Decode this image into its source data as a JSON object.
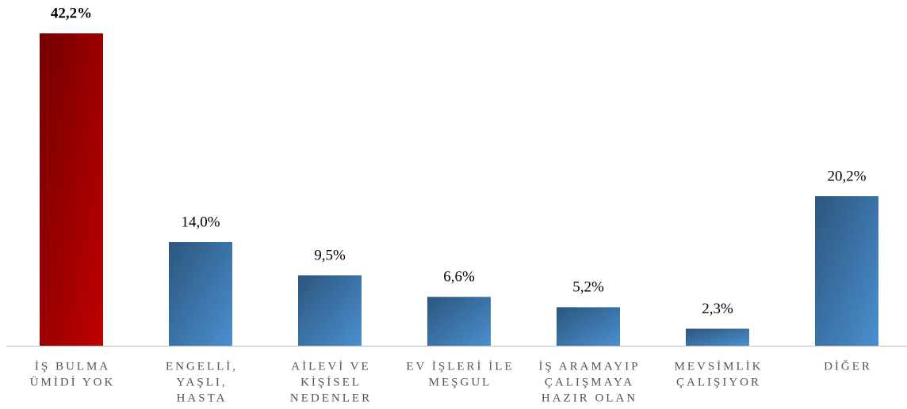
{
  "chart_data": {
    "type": "bar",
    "categories": [
      [
        "İŞ BULMA",
        "ÜMİDİ YOK"
      ],
      [
        "ENGELLİ,",
        "YAŞLI,",
        "HASTA"
      ],
      [
        "AİLEVİ VE",
        "KİŞİSEL",
        "NEDENLER"
      ],
      [
        "EV İŞLERİ İLE",
        "MEŞGUL"
      ],
      [
        "İŞ ARAMAYIP",
        "ÇALIŞMAYA",
        "HAZIR OLAN"
      ],
      [
        "MEVSİMLİK",
        "ÇALIŞIYOR"
      ],
      [
        "DİĞER"
      ]
    ],
    "values": [
      42.2,
      14.0,
      9.5,
      6.6,
      5.2,
      2.3,
      20.2
    ],
    "value_labels": [
      "42,2%",
      "14,0%",
      "9,5%",
      "6,6%",
      "5,2%",
      "2,3%",
      "20,2%"
    ],
    "colors": [
      "#c00000",
      "#4a8fd0",
      "#4a8fd0",
      "#4a8fd0",
      "#4a8fd0",
      "#4a8fd0",
      "#4a8fd0"
    ],
    "ylim": [
      0,
      45
    ]
  }
}
